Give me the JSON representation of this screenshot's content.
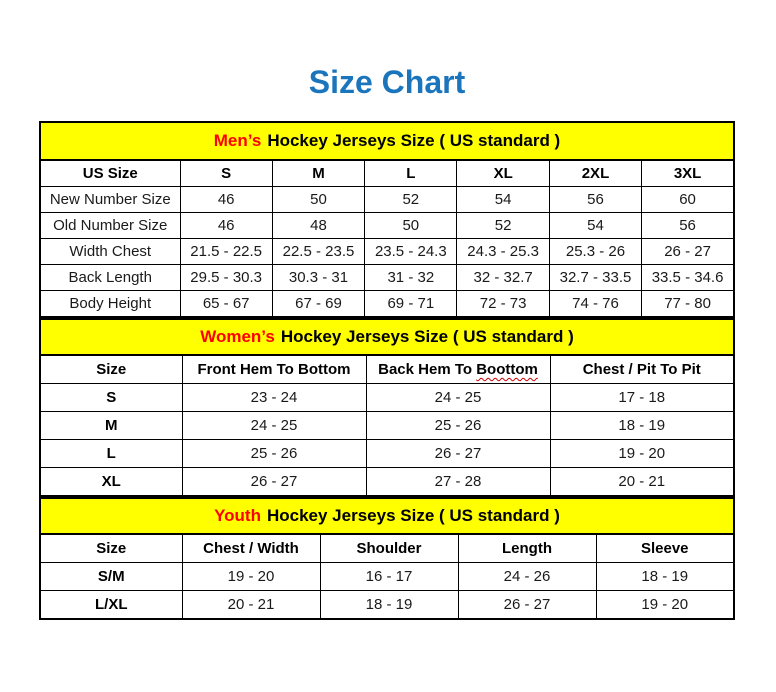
{
  "page": {
    "title": "Size Chart"
  },
  "colors": {
    "title_blue": "#1B75BC",
    "banner_yellow": "#FFFF00",
    "accent_red": "#FF0000",
    "border_black": "#000000",
    "squiggle_red": "#CC0000"
  },
  "sections": [
    {
      "id": "mens",
      "banner": {
        "highlight": "Men’s",
        "rest": "Hockey Jerseys Size ( US standard )"
      },
      "columns": [
        "US Size",
        "S",
        "M",
        "L",
        "XL",
        "2XL",
        "3XL"
      ],
      "rows": [
        [
          "New Number Size",
          "46",
          "50",
          "52",
          "54",
          "56",
          "60"
        ],
        [
          "Old Number Size",
          "46",
          "48",
          "50",
          "52",
          "54",
          "56"
        ],
        [
          "Width Chest",
          "21.5 - 22.5",
          "22.5 - 23.5",
          "23.5 - 24.3",
          "24.3 - 25.3",
          "25.3 - 26",
          "26 - 27"
        ],
        [
          "Back Length",
          "29.5 - 30.3",
          "30.3 - 31",
          "31 - 32",
          "32 - 32.7",
          "32.7 - 33.5",
          "33.5 - 34.6"
        ],
        [
          "Body Height",
          "65 - 67",
          "67 - 69",
          "69 - 71",
          "72 - 73",
          "74 - 76",
          "77 - 80"
        ]
      ]
    },
    {
      "id": "womens",
      "banner": {
        "highlight": "Women’s",
        "rest": "Hockey Jerseys Size ( US standard )"
      },
      "columns": [
        "Size",
        "Front Hem To Bottom",
        {
          "prefix": "Back Hem To ",
          "squiggle": "Boottom"
        },
        "Chest / Pit To Pit"
      ],
      "rows": [
        [
          "S",
          "23 - 24",
          "24 - 25",
          "17 - 18"
        ],
        [
          "M",
          "24 - 25",
          "25 - 26",
          "18 - 19"
        ],
        [
          "L",
          "25 - 26",
          "26 - 27",
          "19 - 20"
        ],
        [
          "XL",
          "26 - 27",
          "27 - 28",
          "20 - 21"
        ]
      ]
    },
    {
      "id": "youth",
      "banner": {
        "highlight": "Youth",
        "rest": "Hockey Jerseys Size ( US standard )"
      },
      "columns": [
        "Size",
        "Chest / Width",
        "Shoulder",
        "Length",
        "Sleeve"
      ],
      "rows": [
        [
          "S/M",
          "19 - 20",
          "16 - 17",
          "24 - 26",
          "18 - 19"
        ],
        [
          "L/XL",
          "20 - 21",
          "18 - 19",
          "26 - 27",
          "19 - 20"
        ]
      ]
    }
  ]
}
